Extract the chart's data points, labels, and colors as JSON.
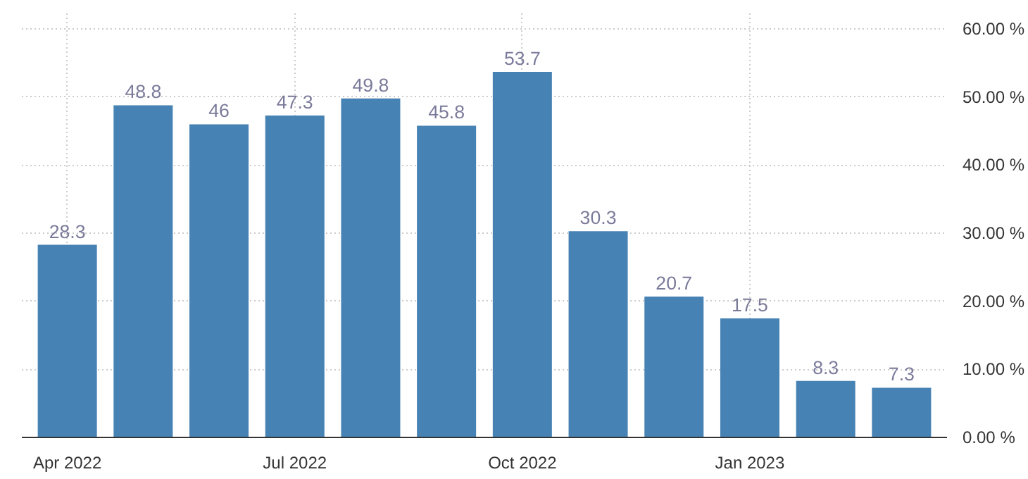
{
  "chart_data": {
    "type": "bar",
    "categories": [
      "Apr 2022",
      null,
      null,
      "Jul 2022",
      null,
      null,
      "Oct 2022",
      null,
      null,
      "Jan 2023",
      null,
      null
    ],
    "values": [
      28.3,
      48.8,
      46,
      47.3,
      49.8,
      45.8,
      53.7,
      30.3,
      20.7,
      17.5,
      8.3,
      7.3
    ],
    "color": "#4682b4",
    "data_labels": true,
    "ylim": [
      0,
      62.5
    ],
    "yticks": [
      {
        "value": 0,
        "label": "0.00 %"
      },
      {
        "value": 10,
        "label": "10.00 %"
      },
      {
        "value": 20,
        "label": "20.00 %"
      },
      {
        "value": 30,
        "label": "30.00 %"
      },
      {
        "value": 40,
        "label": "40.00 %"
      },
      {
        "value": 50,
        "label": "50.00 %"
      },
      {
        "value": 60,
        "label": "60.00 %"
      }
    ],
    "grid": true
  }
}
